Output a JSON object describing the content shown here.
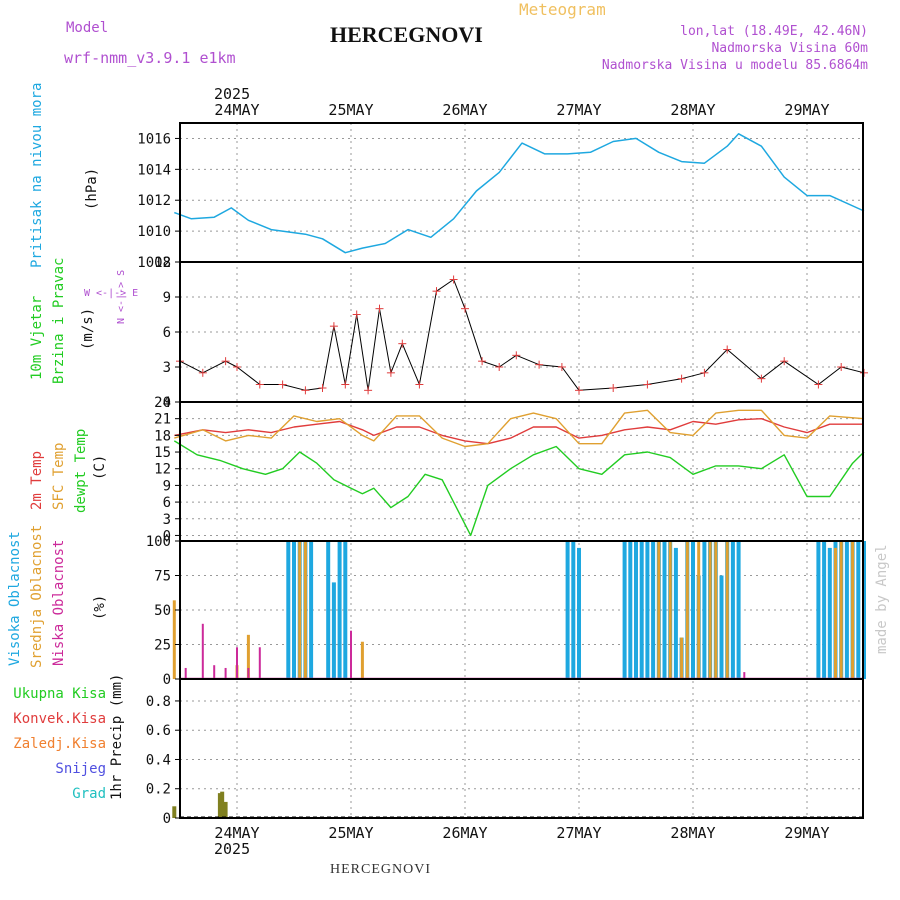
{
  "header": {
    "model_label": "Model",
    "model_name": "wrf-nmm_v3.9.1  e1km",
    "meteogram_label": "Meteogram",
    "station": "HERCEGNOVI",
    "lonlat": "lon,lat (18.49E, 42.46N)",
    "altitude": "Nadmorska Visina 60m",
    "model_altitude": "Nadmorska Visina u modelu 85.6864m",
    "year": "2025",
    "days": [
      "24MAY",
      "25MAY",
      "26MAY",
      "27MAY",
      "28MAY",
      "29MAY"
    ],
    "footer_station": "HERCEGNOVI",
    "credit": "made by Angel"
  },
  "colors": {
    "pressure": "#1ea8e0",
    "temp2m": "#e03c3c",
    "sfc_temp": "#e0a030",
    "dewpoint": "#22cc22",
    "high_cloud": "#1ea8e0",
    "mid_cloud": "#e0a030",
    "low_cloud": "#cc2a9a",
    "precip_total": "#808020",
    "purple_text": "#b050d0",
    "orange_text": "#f0c060"
  },
  "panels": {
    "pressure": {
      "ylabel_color": "Pritisak na nivou mora",
      "unit": "(hPa)",
      "ticks": [
        "1008",
        "1010",
        "1012",
        "1014",
        "1016"
      ]
    },
    "wind": {
      "label1": "10m Vjetar",
      "label2": "Brzina i Pravac",
      "unit": "(m/s)",
      "ticks": [
        "0",
        "3",
        "6",
        "9",
        "12"
      ],
      "compass_ns": "N <-|-> S",
      "compass_ew": "W <-|-> E"
    },
    "temperature": {
      "label_2m": "2m Temp",
      "label_sfc": "SFC Temp",
      "label_dew": "dewpt Temp",
      "unit": "(C)",
      "ticks": [
        "0",
        "3",
        "6",
        "9",
        "12",
        "15",
        "18",
        "21",
        "24"
      ]
    },
    "cloud": {
      "label_high": "Visoka Oblacnost",
      "label_mid": "Srednja Oblacnost",
      "label_low": "Niska Oblacnost",
      "unit": "(%)",
      "ticks": [
        "0",
        "25",
        "50",
        "75",
        "100"
      ]
    },
    "precip": {
      "legend": [
        "Ukupna Kisa",
        "Konvek.Kisa",
        "Zaledj.Kisa",
        "Snijeg",
        "Grad"
      ],
      "legend_colors": [
        "#22cc22",
        "#e03c3c",
        "#f08030",
        "#5050e0",
        "#20c0c0"
      ],
      "ylabel": "1hr Precip (mm)",
      "ticks": [
        "0",
        "0.2",
        "0.4",
        "0.6",
        "0.8"
      ]
    }
  },
  "chart_data": [
    {
      "type": "line",
      "title": "Pritisak na nivou mora",
      "ylabel": "(hPa)",
      "xlabel": "",
      "x_unit": "days from 24MAY 00 UTC",
      "ylim": [
        1008,
        1017
      ],
      "series": [
        {
          "x": [
            -0.55,
            -0.4,
            -0.2,
            -0.05,
            0.1,
            0.3,
            0.6,
            0.75,
            0.95,
            1.1,
            1.3,
            1.5,
            1.7,
            1.9,
            2.1,
            2.3,
            2.5,
            2.7,
            2.9,
            3.1,
            3.3,
            3.5,
            3.7,
            3.9,
            4.1,
            4.3,
            4.4,
            4.6,
            4.8,
            5.0,
            5.2,
            5.5
          ],
          "y": [
            1011.2,
            1010.8,
            1010.9,
            1011.5,
            1010.7,
            1010.1,
            1009.8,
            1009.5,
            1008.6,
            1008.9,
            1009.2,
            1010.1,
            1009.6,
            1010.8,
            1012.6,
            1013.8,
            1015.7,
            1015.0,
            1015.0,
            1015.1,
            1015.8,
            1016.0,
            1015.1,
            1014.5,
            1014.4,
            1015.5,
            1016.3,
            1015.5,
            1013.5,
            1012.3,
            1012.3,
            1011.3
          ]
        }
      ]
    },
    {
      "type": "line",
      "title": "10m Vjetar Brzina i Pravac",
      "ylabel": "(m/s)",
      "xlabel": "",
      "x_unit": "days from 24MAY 00 UTC",
      "ylim": [
        0,
        12
      ],
      "series": [
        {
          "x": [
            -0.5,
            -0.3,
            -0.1,
            0.0,
            0.2,
            0.4,
            0.6,
            0.75,
            0.85,
            0.95,
            1.05,
            1.15,
            1.25,
            1.35,
            1.45,
            1.6,
            1.75,
            1.9,
            2.0,
            2.15,
            2.3,
            2.45,
            2.65,
            2.85,
            3.0,
            3.3,
            3.6,
            3.9,
            4.1,
            4.3,
            4.6,
            4.8,
            5.1,
            5.3,
            5.5
          ],
          "y": [
            3.5,
            2.5,
            3.5,
            3.0,
            1.5,
            1.5,
            1.0,
            1.2,
            6.5,
            1.5,
            7.5,
            1.0,
            8.0,
            2.5,
            5.0,
            1.5,
            9.5,
            10.5,
            8.0,
            3.5,
            3.0,
            4.0,
            3.2,
            3.0,
            1.0,
            1.2,
            1.5,
            2.0,
            2.5,
            4.5,
            2.0,
            3.5,
            1.5,
            3.0,
            2.5
          ]
        }
      ]
    },
    {
      "type": "line",
      "title": "2m Temp / SFC Temp / dewpt Temp",
      "ylabel": "(C)",
      "xlabel": "",
      "x_unit": "days from 24MAY 00 UTC",
      "ylim": [
        -1,
        24
      ],
      "series": [
        {
          "name": "2m Temp",
          "x": [
            -0.55,
            -0.3,
            -0.1,
            0.1,
            0.3,
            0.5,
            0.7,
            0.9,
            1.1,
            1.2,
            1.4,
            1.6,
            1.8,
            2.0,
            2.2,
            2.4,
            2.6,
            2.8,
            3.0,
            3.2,
            3.4,
            3.6,
            3.8,
            4.0,
            4.2,
            4.4,
            4.6,
            4.8,
            5.0,
            5.2,
            5.5
          ],
          "y": [
            18.0,
            19.0,
            18.5,
            19.0,
            18.5,
            19.5,
            20.0,
            20.5,
            19.0,
            18.0,
            19.5,
            19.5,
            18.0,
            17.0,
            16.5,
            17.5,
            19.5,
            19.5,
            17.5,
            18.0,
            19.0,
            19.5,
            19.0,
            20.5,
            20.0,
            20.8,
            21.0,
            19.5,
            18.5,
            20.0,
            20.0
          ]
        },
        {
          "name": "SFC Temp",
          "x": [
            -0.55,
            -0.3,
            -0.1,
            0.1,
            0.3,
            0.5,
            0.7,
            0.9,
            1.1,
            1.2,
            1.4,
            1.6,
            1.8,
            2.0,
            2.2,
            2.4,
            2.6,
            2.8,
            3.0,
            3.2,
            3.4,
            3.6,
            3.8,
            4.0,
            4.2,
            4.4,
            4.6,
            4.8,
            5.0,
            5.2,
            5.5
          ],
          "y": [
            17.5,
            19.0,
            17.0,
            18.0,
            17.5,
            21.5,
            20.5,
            21.0,
            18.0,
            17.0,
            21.5,
            21.5,
            17.5,
            16.0,
            16.5,
            21.0,
            22.0,
            21.0,
            16.5,
            16.5,
            22.0,
            22.5,
            18.5,
            18.0,
            22.0,
            22.5,
            22.5,
            18.0,
            17.5,
            21.5,
            21.0
          ]
        },
        {
          "name": "dewpt Temp",
          "x": [
            -0.55,
            -0.35,
            -0.15,
            0.05,
            0.25,
            0.4,
            0.55,
            0.7,
            0.85,
            1.0,
            1.1,
            1.2,
            1.35,
            1.5,
            1.65,
            1.8,
            1.95,
            2.05,
            2.2,
            2.4,
            2.6,
            2.8,
            3.0,
            3.2,
            3.4,
            3.6,
            3.8,
            4.0,
            4.2,
            4.4,
            4.6,
            4.8,
            5.0,
            5.2,
            5.4,
            5.5
          ],
          "y": [
            17.0,
            14.5,
            13.5,
            12.0,
            11.0,
            12.0,
            15.0,
            13.0,
            10.0,
            8.5,
            7.5,
            8.5,
            5.0,
            7.0,
            11.0,
            10.0,
            4.0,
            0.0,
            9.0,
            12.0,
            14.5,
            16.0,
            12.0,
            11.0,
            14.5,
            15.0,
            14.0,
            11.0,
            12.5,
            12.5,
            12.0,
            14.5,
            7.0,
            7.0,
            13.0,
            15.0
          ]
        }
      ]
    },
    {
      "type": "bar",
      "title": "Visoka / Srednja / Niska Oblacnost",
      "ylabel": "(%)",
      "xlabel": "",
      "x_unit": "days from 24MAY 00 UTC",
      "ylim": [
        0,
        100
      ],
      "series": [
        {
          "name": "Visoka Oblacnost",
          "x": [
            0.45,
            0.5,
            0.55,
            0.6,
            0.65,
            0.8,
            0.85,
            0.9,
            0.95,
            2.9,
            2.95,
            3.0,
            3.4,
            3.45,
            3.5,
            3.55,
            3.6,
            3.65,
            3.7,
            3.75,
            3.8,
            3.85,
            3.9,
            3.95,
            4.0,
            4.05,
            4.1,
            4.15,
            4.2,
            4.25,
            4.3,
            4.35,
            4.4,
            5.1,
            5.15,
            5.2,
            5.25,
            5.3,
            5.35,
            5.4,
            5.45,
            5.5
          ],
          "values": [
            100,
            100,
            100,
            100,
            100,
            100,
            70,
            100,
            100,
            100,
            100,
            95,
            100,
            100,
            100,
            100,
            100,
            100,
            100,
            100,
            100,
            95,
            30,
            100,
            100,
            75,
            100,
            100,
            100,
            75,
            100,
            100,
            100,
            100,
            100,
            95,
            100,
            100,
            100,
            100,
            100,
            100
          ]
        },
        {
          "name": "Srednja Oblacnost",
          "x": [
            -0.55,
            0.0,
            0.1,
            0.55,
            0.6,
            1.1,
            3.7,
            3.8,
            3.9,
            3.95,
            4.05,
            4.15,
            4.2,
            4.3,
            5.25,
            5.3,
            5.4
          ],
          "values": [
            57,
            10,
            32,
            100,
            100,
            27,
            100,
            100,
            30,
            100,
            100,
            100,
            100,
            100,
            95,
            100,
            100
          ]
        },
        {
          "name": "Niska Oblacnost",
          "x": [
            -0.45,
            -0.3,
            -0.2,
            -0.1,
            0.0,
            0.1,
            0.2,
            1.0,
            4.45
          ],
          "values": [
            8,
            40,
            10,
            8,
            23,
            8,
            23,
            35,
            5
          ]
        }
      ]
    },
    {
      "type": "bar",
      "title": "1hr Precip",
      "ylabel": "1hr Precip (mm)",
      "xlabel": "",
      "x_unit": "days from 24MAY 00 UTC",
      "ylim": [
        0,
        0.95
      ],
      "series": [
        {
          "name": "Ukupna Kisa",
          "x": [
            -0.55,
            -0.15,
            -0.13,
            -0.1
          ],
          "values": [
            0.08,
            0.17,
            0.18,
            0.11
          ]
        }
      ]
    }
  ]
}
